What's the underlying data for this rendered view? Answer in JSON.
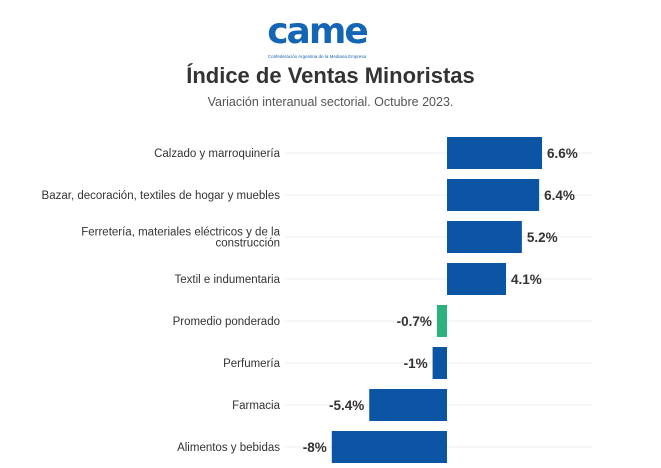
{
  "logo": {
    "mark": "came",
    "tagline": "Confederación Argentina de la Mediana Empresa"
  },
  "chart_data": {
    "type": "bar",
    "orientation": "horizontal",
    "title": "Índice de Ventas Minoristas",
    "subtitle": "Variación interanual sectorial. Octubre 2023.",
    "categories": [
      [
        "Calzado y marroquinería"
      ],
      [
        "Bazar, decoración, textiles de hogar y muebles"
      ],
      [
        "Ferretería, materiales eléctricos y de la",
        "construcción"
      ],
      [
        "Textil e indumentaria"
      ],
      [
        "Promedio ponderado"
      ],
      [
        "Perfumería"
      ],
      [
        "Farmacia"
      ],
      [
        "Alimentos y bebidas"
      ]
    ],
    "values": [
      6.6,
      6.4,
      5.2,
      4.1,
      -0.7,
      -1,
      -5.4,
      -8
    ],
    "data_labels": [
      "6.6%",
      "6.4%",
      "5.2%",
      "4.1%",
      "-0.7%",
      "-1%",
      "-5.4%",
      "-8%"
    ],
    "colors": [
      "#0b55a4",
      "#0b55a4",
      "#0b55a4",
      "#0b55a4",
      "#2fb07f",
      "#0b55a4",
      "#0b55a4",
      "#0b55a4"
    ],
    "xlim": [
      -8,
      10
    ],
    "grid": true
  }
}
